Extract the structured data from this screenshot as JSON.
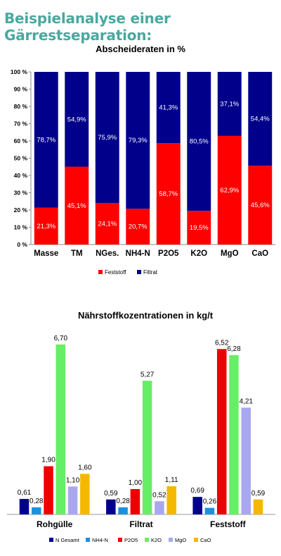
{
  "heading": "Beispielanalyse einer Gärrestseparation:",
  "chart_data": [
    {
      "type": "bar",
      "stacked": true,
      "title": "Abscheideraten in %",
      "categories": [
        "Masse",
        "TM",
        "NGes.",
        "NH4-N",
        "P2O5",
        "K2O",
        "MgO",
        "CaO"
      ],
      "series": [
        {
          "name": "Feststoff",
          "color": "#ff0000",
          "values": [
            21.3,
            45.1,
            24.1,
            20.7,
            58.7,
            19.5,
            62.9,
            45.6
          ],
          "labels": [
            "21,3%",
            "45,1%",
            "24,1%",
            "20,7%",
            "58,7%",
            "19,5%",
            "62,9%",
            "45,6%"
          ]
        },
        {
          "name": "Filtrat",
          "color": "#00008b",
          "values": [
            78.7,
            54.9,
            75.9,
            79.3,
            41.3,
            80.5,
            37.1,
            54.4
          ],
          "labels": [
            "78,7%",
            "54,9%",
            "75,9%",
            "79,3%",
            "41,3%",
            "80,5%",
            "37,1%",
            "54,4%"
          ]
        }
      ],
      "ylim": [
        0,
        100
      ],
      "yticks": [
        "0 %",
        "10 %",
        "20 %",
        "30 %",
        "40 %",
        "50 %",
        "60 %",
        "70 %",
        "80 %",
        "90 %",
        "100 %"
      ],
      "legend": "bottom",
      "grid": false
    },
    {
      "type": "bar",
      "title": "Nährstoffkozentrationen in kg/t",
      "categories": [
        "Rohgülle",
        "Filtrat",
        "Feststoff"
      ],
      "series": [
        {
          "name": "N Gesamt",
          "color": "#00008b",
          "values": [
            0.61,
            0.59,
            0.69
          ],
          "labels": [
            "0,61",
            "0,59",
            "0,69"
          ]
        },
        {
          "name": "NH4-N",
          "color": "#1e90e0",
          "values": [
            0.28,
            0.28,
            0.26
          ],
          "labels": [
            "0,28",
            "0,28",
            "0,26"
          ]
        },
        {
          "name": "P2O5",
          "color": "#ee0000",
          "values": [
            1.9,
            1.0,
            6.52
          ],
          "labels": [
            "1,90",
            "1,00",
            "6,52"
          ]
        },
        {
          "name": "K2O",
          "color": "#66ee66",
          "values": [
            6.7,
            5.27,
            6.28
          ],
          "labels": [
            "6,70",
            "5,27",
            "6,28"
          ]
        },
        {
          "name": "MgO",
          "color": "#a8a8f0",
          "values": [
            1.1,
            0.52,
            4.21
          ],
          "labels": [
            "1,10",
            "0,52",
            "4,21"
          ]
        },
        {
          "name": "CaO",
          "color": "#f5b800",
          "values": [
            1.6,
            1.11,
            0.59
          ],
          "labels": [
            "1,60",
            "1,11",
            "0,59"
          ]
        }
      ],
      "ylim": [
        0,
        7
      ],
      "legend": "bottom",
      "grid": false
    }
  ]
}
